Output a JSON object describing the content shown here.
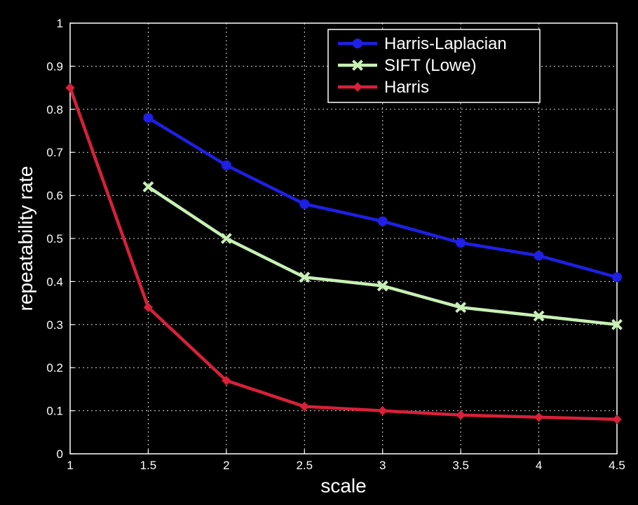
{
  "chart_data": {
    "type": "line",
    "title": "",
    "xlabel": "scale",
    "ylabel": "repeatability rate",
    "xlim": [
      1,
      4.5
    ],
    "ylim": [
      0,
      1
    ],
    "xticks": [
      "1",
      "1.5",
      "2",
      "2.5",
      "3",
      "3.5",
      "4",
      "4.5"
    ],
    "yticks": [
      "0",
      "0.1",
      "0.2",
      "0.3",
      "0.4",
      "0.5",
      "0.6",
      "0.7",
      "0.8",
      "0.9",
      "1"
    ],
    "grid": true,
    "legend_position": "top-right",
    "background": "#000000",
    "series": [
      {
        "name": "Harris-Laplacian",
        "color": "#1f1fe6",
        "marker": "circle",
        "x": [
          1.5,
          2,
          2.5,
          3,
          3.5,
          4,
          4.5
        ],
        "values": [
          0.78,
          0.67,
          0.58,
          0.54,
          0.49,
          0.46,
          0.41
        ]
      },
      {
        "name": "SIFT (Lowe)",
        "color": "#c8f0b4",
        "marker": "x",
        "x": [
          1.5,
          2,
          2.5,
          3,
          3.5,
          4,
          4.5
        ],
        "values": [
          0.62,
          0.5,
          0.41,
          0.39,
          0.34,
          0.32,
          0.3
        ]
      },
      {
        "name": "Harris",
        "color": "#d8203a",
        "marker": "diamond",
        "x": [
          1,
          1.5,
          2,
          2.5,
          3,
          3.5,
          4,
          4.5
        ],
        "values": [
          0.85,
          0.34,
          0.17,
          0.11,
          0.1,
          0.09,
          0.085,
          0.08
        ]
      }
    ]
  }
}
